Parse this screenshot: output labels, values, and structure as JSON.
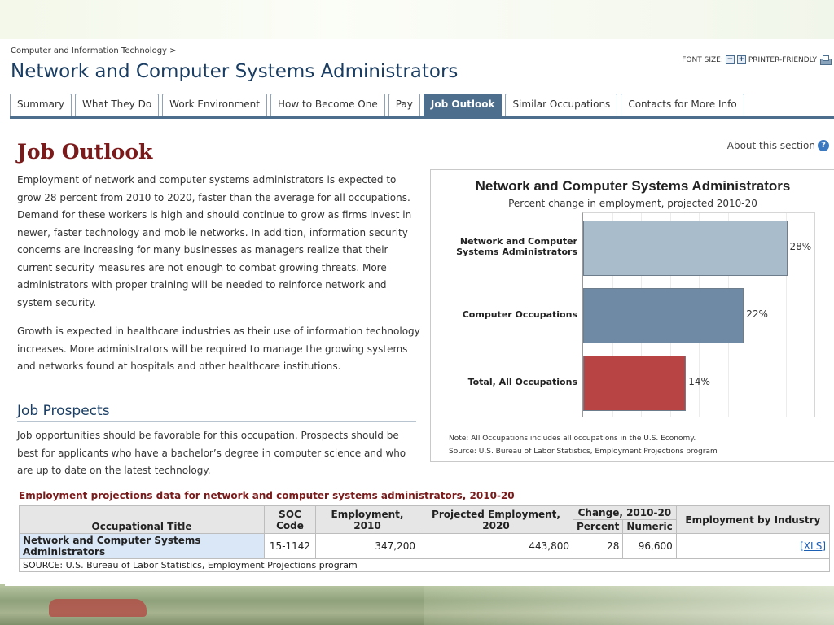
{
  "breadcrumb": "Computer and Information Technology >",
  "page_title": "Network and Computer Systems Administrators",
  "tools": {
    "font_size_label": "FONT SIZE:",
    "printer_label": "PRINTER-FRIENDLY",
    "icons": [
      "minus-icon",
      "plus-icon",
      "printer-icon"
    ]
  },
  "tabs": [
    {
      "label": "Summary"
    },
    {
      "label": "What They Do"
    },
    {
      "label": "Work Environment"
    },
    {
      "label": "How to Become One"
    },
    {
      "label": "Pay"
    },
    {
      "label": "Job Outlook",
      "active": true
    },
    {
      "label": "Similar Occupations"
    },
    {
      "label": "Contacts for More Info"
    }
  ],
  "section": {
    "title": "Job Outlook",
    "about_label": "About this section",
    "para1": "Employment of network and computer systems administrators is expected to grow 28 percent from 2010 to 2020, faster than the average for all occupations. Demand for these workers is high and should continue to grow as firms invest in newer, faster technology and mobile networks. In addition, information security concerns are increasing for many businesses as managers realize that their current security measures are not enough to combat growing threats. More administrators with proper training will be needed to reinforce network and system security.",
    "para2": "Growth is expected in healthcare industries as their use of information technology increases. More administrators will be required to manage the growing systems and networks found at hospitals and other healthcare institutions.",
    "prospects_title": "Job Prospects",
    "para3": "Job opportunities should be favorable for this occupation. Prospects should be best for applicants who have a bachelor’s degree in computer science and who are up to date on the latest technology."
  },
  "chart_data": {
    "type": "bar",
    "orientation": "horizontal",
    "title": "Network and Computer Systems Administrators",
    "subtitle": "Percent change in employment, projected 2010-20",
    "categories": [
      "Network and Computer Systems Administrators",
      "Computer Occupations",
      "Total, All Occupations"
    ],
    "category_lines": [
      [
        "Network and Computer",
        "Systems Administrators"
      ],
      [
        "Computer Occupations"
      ],
      [
        "Total, All Occupations"
      ]
    ],
    "values": [
      28,
      22,
      14
    ],
    "value_labels": [
      "28%",
      "22%",
      "14%"
    ],
    "colors": [
      "#a9bccb",
      "#6e8aa5",
      "#b84444"
    ],
    "xlim": [
      0,
      32
    ],
    "grid": true,
    "note": "Note: All Occupations includes all occupations in the U.S. Economy.",
    "source": "Source: U.S. Bureau of Labor Statistics, Employment Projections program"
  },
  "table": {
    "caption": "Employment projections data for network and computer systems administrators, 2010-20",
    "headers": {
      "title": "Occupational Title",
      "soc": "SOC Code",
      "emp2010": "Employment, 2010",
      "proj2020": "Projected Employment, 2020",
      "change": "Change, 2010-20",
      "percent": "Percent",
      "numeric": "Numeric",
      "industry": "Employment by Industry"
    },
    "row": {
      "title": "Network and Computer Systems Administrators",
      "soc": "15-1142",
      "emp2010": "347,200",
      "proj2020": "443,800",
      "percent": "28",
      "numeric": "96,600",
      "industry": "[XLS]"
    },
    "source": "SOURCE: U.S. Bureau of Labor Statistics, Employment Projections program"
  }
}
